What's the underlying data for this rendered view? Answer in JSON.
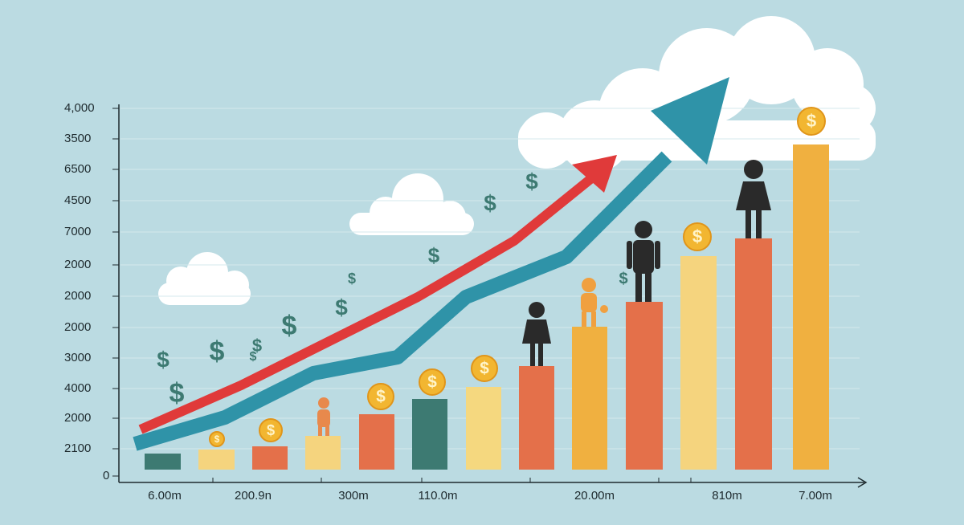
{
  "y_axis_labels": [
    "4,000",
    "3500",
    "6500",
    "4500",
    "7000",
    "2000",
    "2000",
    "2000",
    "3000",
    "4000",
    "2000",
    "2100",
    "0"
  ],
  "x_axis_labels": [
    "6.00m",
    "200.9n",
    "300m",
    "110.0m",
    "20.00m",
    "810m",
    "7.00m"
  ],
  "dollar_sign": "$"
}
